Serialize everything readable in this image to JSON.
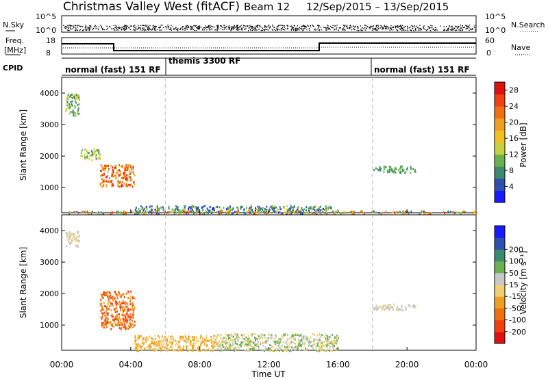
{
  "header": {
    "title": "Christmas Valley West (fitACF)",
    "beam": "Beam 12",
    "date_range": "12/Sep/2015 – 13/Sep/2015"
  },
  "status_panels": {
    "nsky": {
      "label": "N.Sky",
      "ticks": [
        "10^5",
        "10^0"
      ]
    },
    "nsearch": {
      "label": "N.Search",
      "ticks": [
        "10^5",
        "10^0"
      ]
    },
    "freq": {
      "label_line1": "Freq.",
      "label_line2": "[MHz]",
      "ticks": [
        "18",
        "8"
      ]
    },
    "nave": {
      "label": "Nave",
      "ticks": [
        "60",
        "0"
      ]
    },
    "cpid": {
      "label": "CPID"
    },
    "modes": [
      {
        "text": "normal (fast) 151 RF",
        "start_hour": 0,
        "end_hour": 6
      },
      {
        "text": "themis 3300 RF",
        "start_hour": 6,
        "end_hour": 18
      },
      {
        "text": "normal (fast) 151 RF",
        "start_hour": 18,
        "end_hour": 24
      }
    ]
  },
  "colors": {
    "power_scale": [
      "#1a1aff",
      "#3050b0",
      "#3a8a70",
      "#6ab050",
      "#c8d040",
      "#f0c020",
      "#f0a020",
      "#f07010",
      "#f04010",
      "#e01010"
    ],
    "velocity_scale": [
      "#e01010",
      "#f04010",
      "#f07010",
      "#f0a020",
      "#f0d070",
      "#c8c8c8",
      "#6ab050",
      "#3a8a70",
      "#3050b0",
      "#1a1aff"
    ],
    "dashed_marker": "#bbbbbb"
  },
  "chart_data": [
    {
      "type": "heatmap",
      "name": "power",
      "ylabel": "Slant Range [km]",
      "y_ticks": [
        1000,
        2000,
        3000,
        4000
      ],
      "ylim": [
        200,
        4500
      ],
      "xlim": [
        0,
        24
      ],
      "colorbar_label": "Power [dB]",
      "colorbar_ticks": [
        4,
        8,
        12,
        16,
        20,
        24,
        28
      ],
      "colorbar_range": [
        0,
        30
      ],
      "dashed_hours": [
        6,
        18
      ],
      "regions": [
        {
          "t_start": 4.2,
          "t_end": 15.6,
          "r_min": 200,
          "r_max": 450,
          "value_min": 2,
          "value_max": 14
        },
        {
          "t_start": 0.3,
          "t_end": 24.0,
          "r_min": 200,
          "r_max": 280,
          "value_min": 4,
          "value_max": 28
        },
        {
          "t_start": 2.2,
          "t_end": 4.2,
          "r_min": 1050,
          "r_max": 1750,
          "value_min": 16,
          "value_max": 28
        },
        {
          "t_start": 1.0,
          "t_end": 2.2,
          "r_min": 1900,
          "r_max": 2250,
          "value_min": 8,
          "value_max": 18
        },
        {
          "t_start": 0.2,
          "t_end": 1.0,
          "r_min": 3300,
          "r_max": 4000,
          "value_min": 6,
          "value_max": 16
        },
        {
          "t_start": 18.0,
          "t_end": 20.5,
          "r_min": 1500,
          "r_max": 1700,
          "value_min": 6,
          "value_max": 12
        }
      ]
    },
    {
      "type": "heatmap",
      "name": "velocity",
      "ylabel": "Slant Range [km]",
      "y_ticks": [
        1000,
        2000,
        3000,
        4000
      ],
      "ylim": [
        200,
        4500
      ],
      "xlim": [
        0,
        24
      ],
      "x_ticks": [
        "00:00",
        "04:00",
        "08:00",
        "12:00",
        "16:00",
        "20:00",
        "00:00"
      ],
      "xlabel": "Time UT",
      "colorbar_label": "Velocity [m s⁻¹]",
      "colorbar_ticks": [
        "-200",
        "-100",
        "-50",
        "-15",
        "15",
        "50",
        "100",
        "200"
      ],
      "colorbar_range": [
        -250,
        250
      ],
      "dashed_hours": [
        6,
        18
      ],
      "regions": [
        {
          "t_start": 2.2,
          "t_end": 4.2,
          "r_min": 900,
          "r_max": 2100,
          "value_min": -200,
          "value_max": -50
        },
        {
          "t_start": 4.2,
          "t_end": 9.0,
          "r_min": 200,
          "r_max": 700,
          "value_min": -100,
          "value_max": -15
        },
        {
          "t_start": 9.0,
          "t_end": 16.0,
          "r_min": 200,
          "r_max": 750,
          "value_min": -50,
          "value_max": 100
        },
        {
          "t_start": 0.2,
          "t_end": 1.0,
          "r_min": 3500,
          "r_max": 4000,
          "value_min": -30,
          "value_max": 30
        },
        {
          "t_start": 18.0,
          "t_end": 20.5,
          "r_min": 1500,
          "r_max": 1700,
          "value_min": -15,
          "value_max": 50
        }
      ]
    }
  ]
}
